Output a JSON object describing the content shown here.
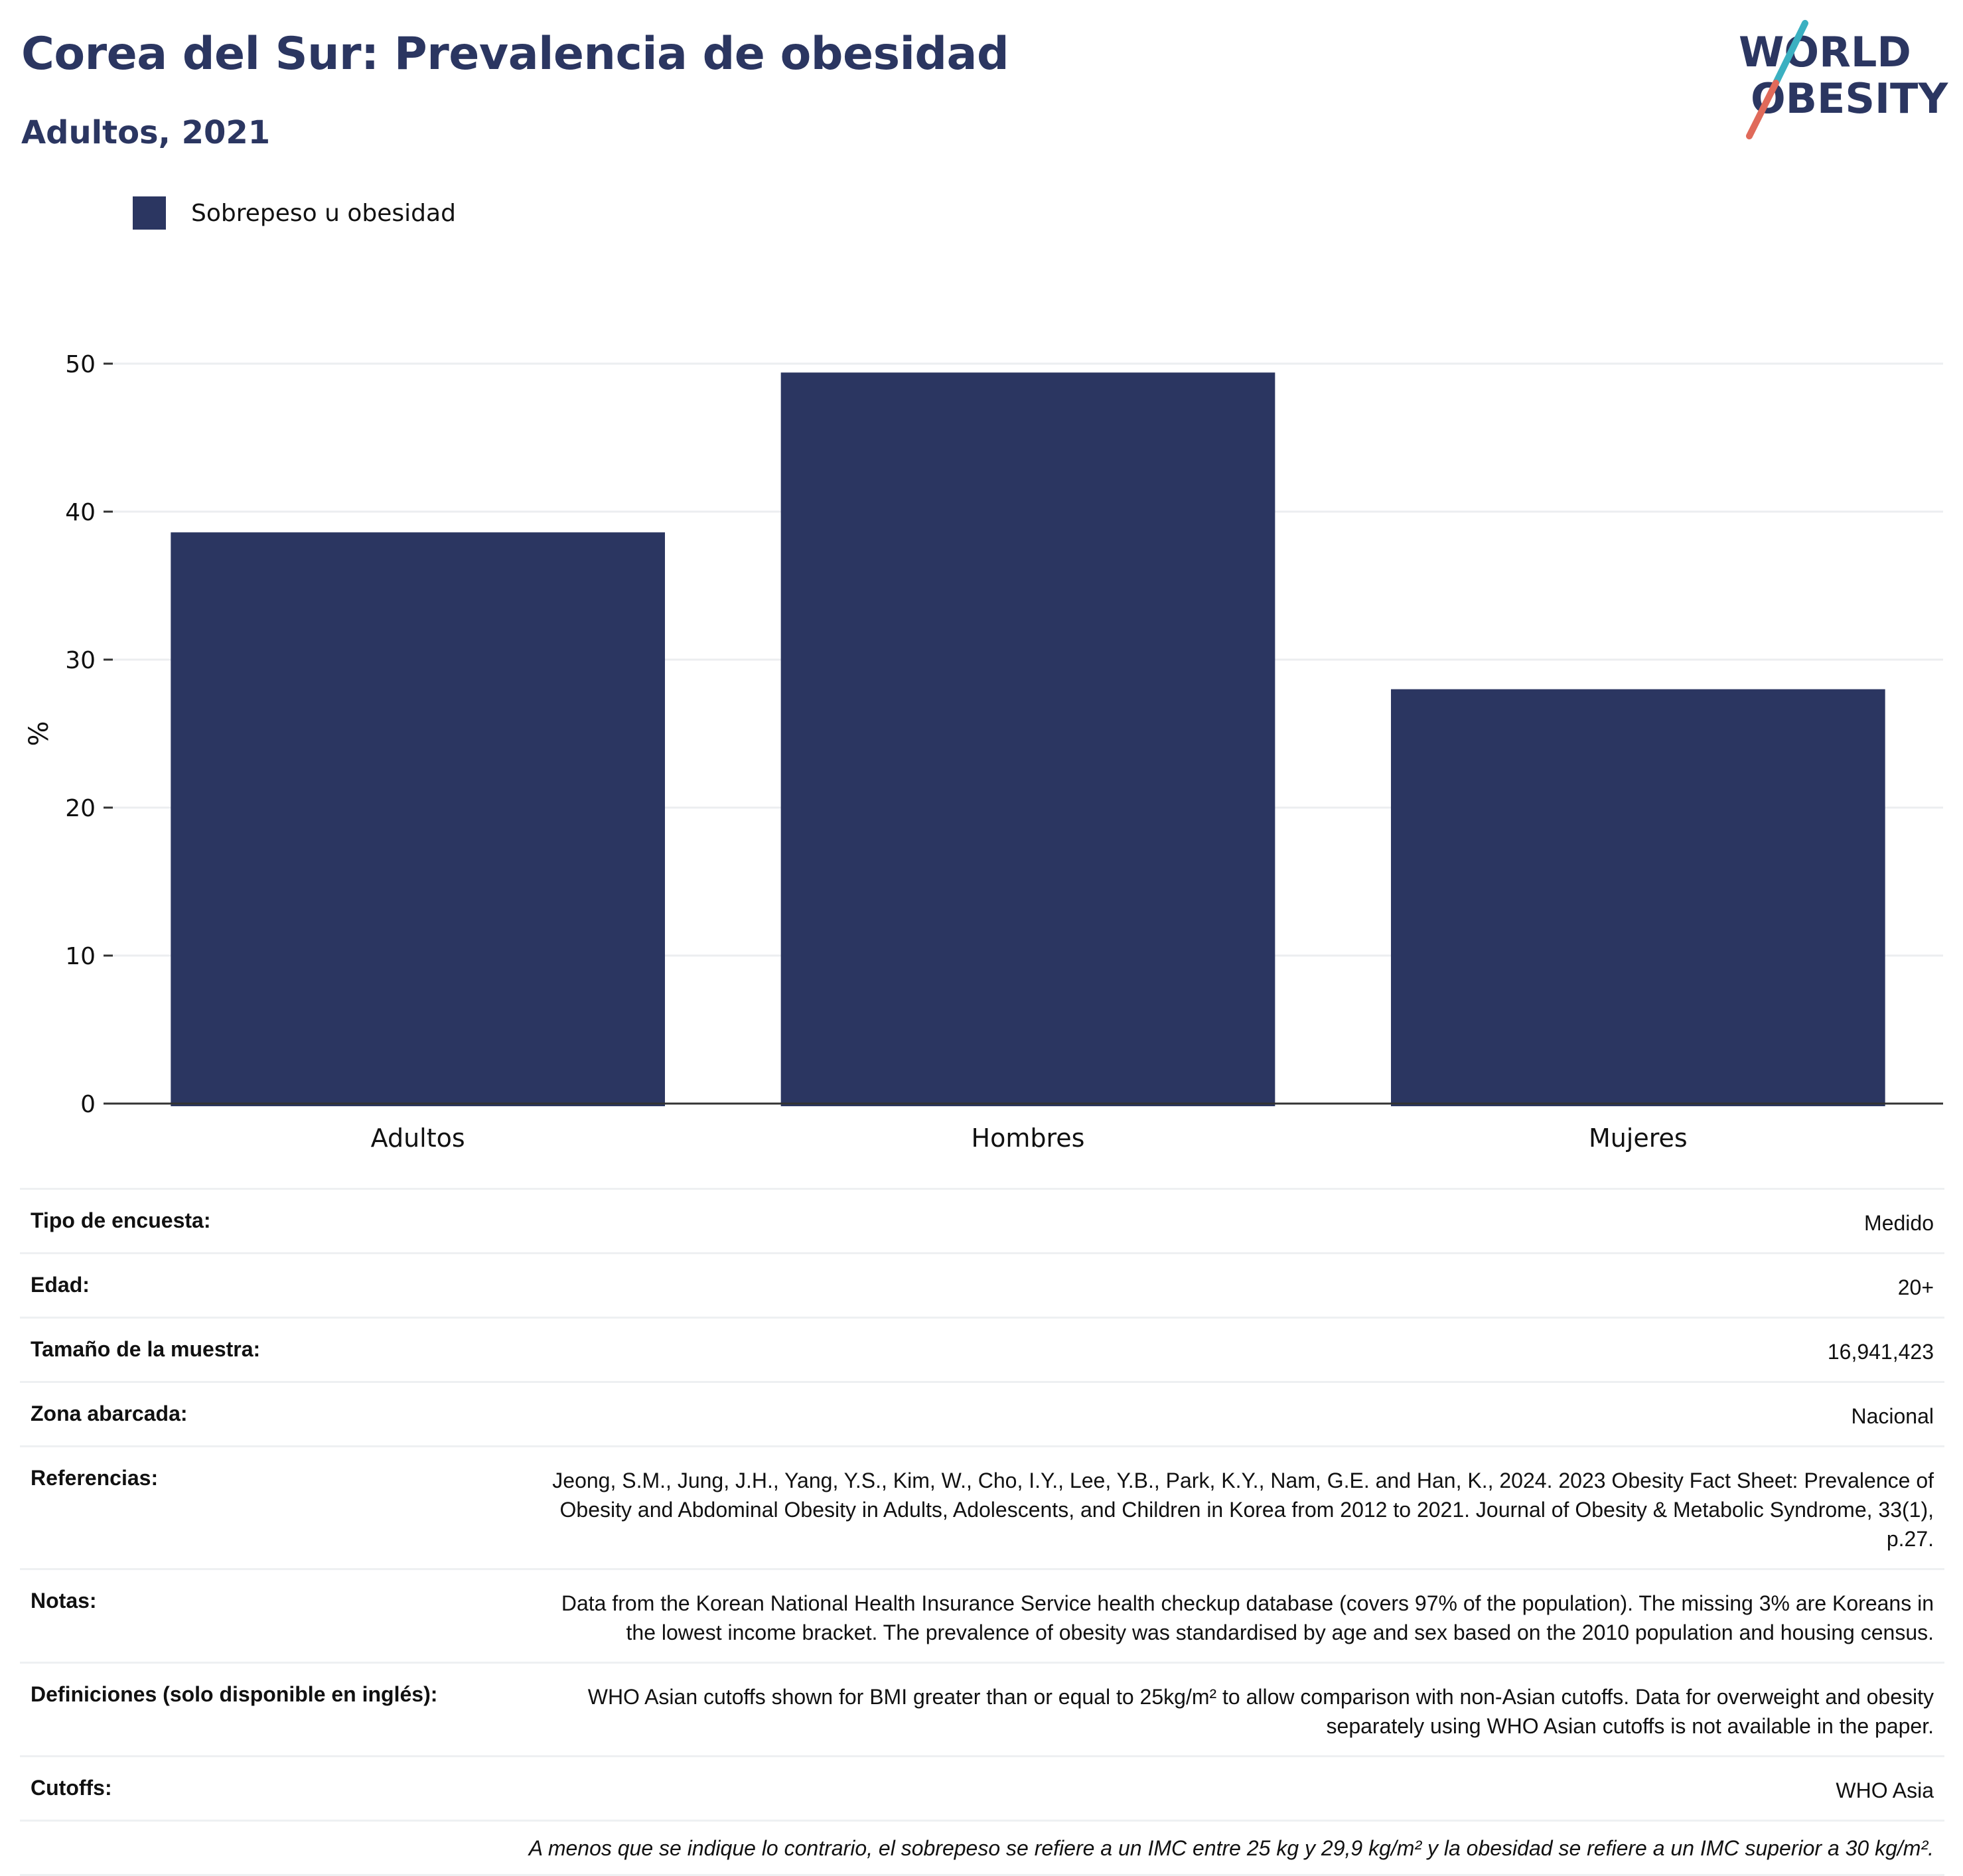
{
  "header": {
    "title": "Corea del Sur: Prevalencia de obesidad",
    "subtitle": "Adultos, 2021"
  },
  "logo": {
    "line1": "WORLD",
    "line2": "OBESITY",
    "colors": {
      "text": "#2b3661",
      "slash_top": "#3bb0c1",
      "slash_bottom": "#e06a5a"
    }
  },
  "chart_data": {
    "type": "bar",
    "categories": [
      "Adultos",
      "Hombres",
      "Mujeres"
    ],
    "series": [
      {
        "name": "Sobrepeso u obesidad",
        "values": [
          38.6,
          49.4,
          28.0
        ],
        "color": "#2b3661"
      }
    ],
    "ylabel": "%",
    "xlabel": "",
    "ylim": [
      0,
      50
    ],
    "yticks": [
      0,
      10,
      20,
      30,
      40,
      50
    ],
    "grid": true,
    "legend_position": "top-left"
  },
  "info": {
    "rows": [
      {
        "label": "Tipo de encuesta:",
        "value": "Medido"
      },
      {
        "label": "Edad:",
        "value": "20+"
      },
      {
        "label": "Tamaño de la muestra:",
        "value": "16,941,423"
      },
      {
        "label": "Zona abarcada:",
        "value": "Nacional"
      },
      {
        "label": "Referencias:",
        "value": "Jeong, S.M., Jung, J.H., Yang, Y.S., Kim, W., Cho, I.Y., Lee, Y.B., Park, K.Y., Nam, G.E. and Han, K., 2024. 2023 Obesity Fact Sheet: Prevalence of Obesity and Abdominal Obesity in Adults, Adolescents, and Children in Korea from 2012 to 2021. Journal of Obesity & Metabolic Syndrome, 33(1), p.27."
      },
      {
        "label": "Notas:",
        "value": "Data from the Korean National Health Insurance Service health checkup database (covers 97% of the population). The missing 3% are Koreans in the lowest income bracket. The prevalence of obesity was standardised by age and sex based on the 2010 population and housing census."
      },
      {
        "label": "Definiciones (solo disponible en inglés):",
        "value": "WHO Asian cutoffs shown for BMI greater than or equal to 25kg/m² to allow comparison with non-Asian cutoffs. Data for overweight and obesity separately using WHO Asian cutoffs is not available in the paper."
      },
      {
        "label": "Cutoffs:",
        "value": "WHO Asia"
      }
    ],
    "footnote": "A menos que se indique lo contrario, el sobrepeso se refiere a un IMC entre 25 kg y 29,9 kg/m² y la obesidad se refiere a un IMC superior a 30 kg/m²."
  }
}
